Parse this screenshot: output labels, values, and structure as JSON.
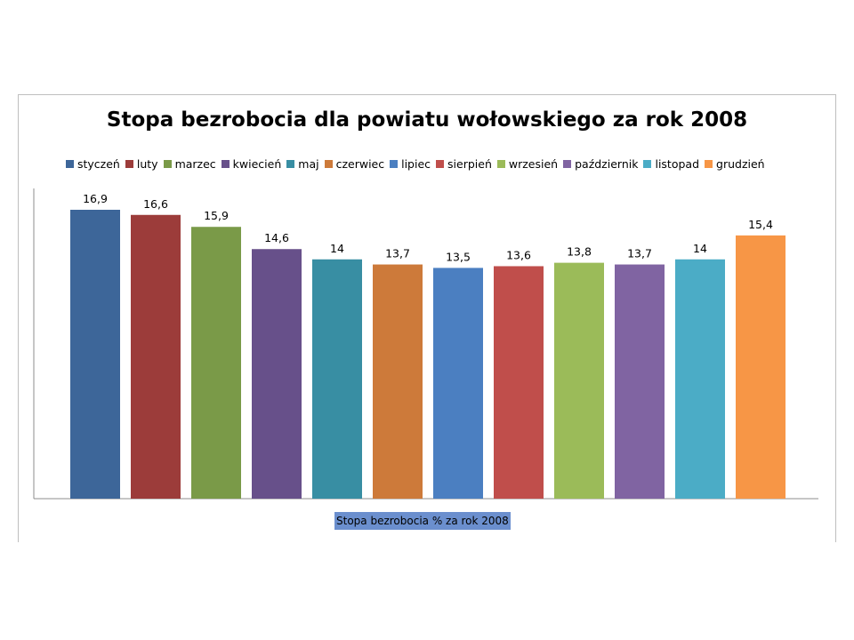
{
  "chart_data": {
    "type": "bar",
    "title": "Stopa bezrobocia dla powiatu wołowskiego za rok 2008",
    "xlabel": "Stopa bezrobocia % za rok 2008",
    "ylabel": "",
    "ylim": [
      0,
      18
    ],
    "grid": false,
    "legend_position": "top",
    "categories": [
      "styczeń",
      "luty",
      "marzec",
      "kwiecień",
      "maj",
      "czerwiec",
      "lipiec",
      "sierpień",
      "wrzesień",
      "październik",
      "listopad",
      "grudzień"
    ],
    "values": [
      16.9,
      16.6,
      15.9,
      14.6,
      14,
      13.7,
      13.5,
      13.6,
      13.8,
      13.7,
      14,
      15.4
    ],
    "value_labels": [
      "16,9",
      "16,6",
      "15,9",
      "14,6",
      "14",
      "13,7",
      "13,5",
      "13,6",
      "13,8",
      "13,7",
      "14",
      "15,4"
    ],
    "colors": [
      "#3d6699",
      "#9c3c3a",
      "#7a9a48",
      "#67508a",
      "#388ea3",
      "#cd7a3a",
      "#4b7fc1",
      "#c04e4b",
      "#9bbb59",
      "#8064a2",
      "#4bacc6",
      "#f79646"
    ]
  }
}
